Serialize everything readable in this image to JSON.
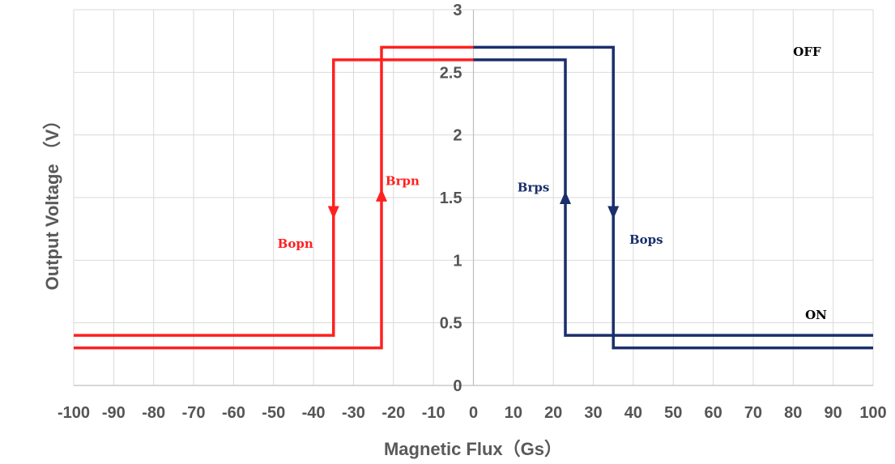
{
  "chart_data": {
    "type": "line",
    "title": "",
    "xlabel": "Magnetic Flux（Gs）",
    "ylabel": "Output Voltage （V）",
    "xlim": [
      -100,
      100
    ],
    "ylim": [
      0,
      3
    ],
    "x_ticks": [
      -100,
      -90,
      -80,
      -70,
      -60,
      -50,
      -40,
      -30,
      -20,
      -10,
      0,
      10,
      20,
      30,
      40,
      50,
      60,
      70,
      80,
      90,
      100
    ],
    "y_ticks": [
      0,
      0.5,
      1,
      1.5,
      2,
      2.5,
      3
    ],
    "y_tick_labels": [
      "0",
      "0.5",
      "1",
      "1.5",
      "2",
      "2.5",
      "3"
    ],
    "grid": true,
    "series": [
      {
        "name": "",
        "color": "#ff2020",
        "points": [
          [
            -100,
            0.4
          ],
          [
            -35,
            0.4
          ],
          [
            -35,
            2.6
          ],
          [
            0,
            2.6
          ]
        ]
      },
      {
        "name": "",
        "color": "#ff2020",
        "points": [
          [
            -100,
            0.3
          ],
          [
            -23,
            0.3
          ],
          [
            -23,
            2.7
          ],
          [
            0,
            2.7
          ]
        ]
      },
      {
        "name": "",
        "color": "#1a2f6b",
        "points": [
          [
            0,
            2.6
          ],
          [
            23,
            2.6
          ],
          [
            23,
            0.4
          ],
          [
            100,
            0.4
          ]
        ]
      },
      {
        "name": "",
        "color": "#1a2f6b",
        "points": [
          [
            0,
            2.7
          ],
          [
            35,
            2.7
          ],
          [
            35,
            0.3
          ],
          [
            100,
            0.3
          ]
        ]
      }
    ],
    "arrows": [
      {
        "x": -35,
        "y": 1.38,
        "direction": "down",
        "color": "#ff2020"
      },
      {
        "x": -23,
        "y": 1.52,
        "direction": "up",
        "color": "#ff2020"
      },
      {
        "x": 23,
        "y": 1.5,
        "direction": "up",
        "color": "#1a2f6b"
      },
      {
        "x": 35,
        "y": 1.38,
        "direction": "down",
        "color": "#1a2f6b"
      }
    ],
    "annotations": [
      {
        "text": "Brpn",
        "x": -22,
        "y": 1.6,
        "color": "#ff2020"
      },
      {
        "text": "Bopn",
        "x": -49,
        "y": 1.1,
        "color": "#ff2020"
      },
      {
        "text": "Brps",
        "x": 11,
        "y": 1.55,
        "color": "#1a2f6b"
      },
      {
        "text": "Bops",
        "x": 39,
        "y": 1.13,
        "color": "#1a2f6b"
      },
      {
        "text": "OFF",
        "x": 80,
        "y": 2.63,
        "color": "#000000"
      },
      {
        "text": "ON",
        "x": 83,
        "y": 0.53,
        "color": "#000000"
      }
    ]
  }
}
